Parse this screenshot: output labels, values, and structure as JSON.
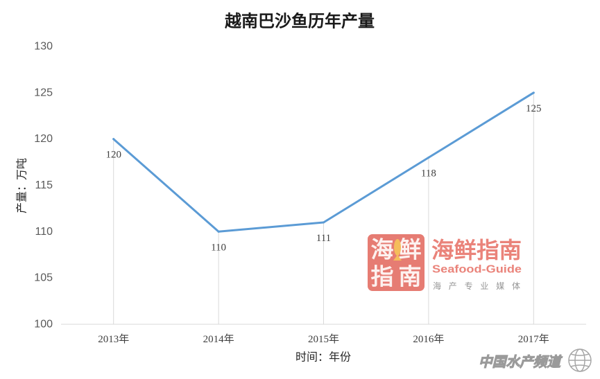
{
  "chart_data": {
    "type": "line",
    "title": "越南巴沙鱼历年产量",
    "xlabel": "时间：年份",
    "ylabel": "产量：万吨",
    "categories": [
      "2013年",
      "2014年",
      "2015年",
      "2016年",
      "2017年"
    ],
    "values": [
      120,
      110,
      111,
      118,
      125
    ],
    "show_data_labels": true,
    "ylim": [
      100,
      130
    ],
    "yticks": [
      100,
      105,
      110,
      115,
      120,
      125,
      130
    ],
    "grid": false,
    "drop_lines": true,
    "colors": {
      "line": "#5b9bd5",
      "drop_line": "#d9d9d9",
      "axis": "#d9d9d9"
    }
  },
  "watermarks": {
    "logo_mark": [
      "海",
      "鲜",
      "指",
      "南"
    ],
    "logo_icon": "fish-icon",
    "logo_name": "海鲜指南",
    "logo_english": "Seafood-Guide",
    "logo_tagline": "海 产 专 业 媒 体",
    "logo_color": "#e8766c",
    "logo_mark_color": "#e46e64",
    "corner_text": "中国水产频道",
    "corner_icon": "globe-icon"
  }
}
